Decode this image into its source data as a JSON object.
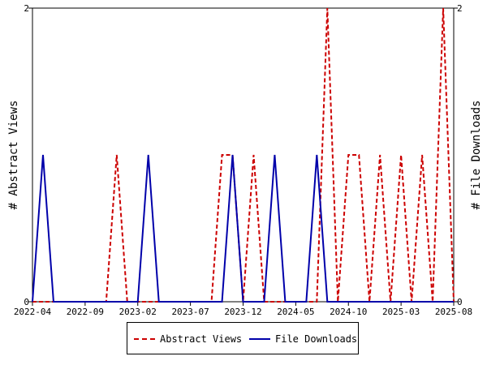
{
  "chart_data": {
    "type": "line",
    "xlabel": "",
    "ylabel_left": "# Abstract Views",
    "ylabel_right": "# File Downloads",
    "x": [
      "2022-04",
      "2022-05",
      "2022-06",
      "2022-07",
      "2022-08",
      "2022-09",
      "2022-10",
      "2022-11",
      "2022-12",
      "2023-01",
      "2023-02",
      "2023-03",
      "2023-04",
      "2023-05",
      "2023-06",
      "2023-07",
      "2023-08",
      "2023-09",
      "2023-10",
      "2023-11",
      "2023-12",
      "2024-01",
      "2024-02",
      "2024-03",
      "2024-04",
      "2024-05",
      "2024-06",
      "2024-07",
      "2024-08",
      "2024-09",
      "2024-10",
      "2024-11",
      "2024-12",
      "2025-01",
      "2025-02",
      "2025-03",
      "2025-04",
      "2025-05",
      "2025-06",
      "2025-07",
      "2025-08"
    ],
    "x_tick_labels": [
      "2022-04",
      "2022-09",
      "2023-02",
      "2023-07",
      "2023-12",
      "2024-05",
      "2024-10",
      "2025-03",
      "2025-08"
    ],
    "x_tick_every": 5,
    "ylim_left": [
      0,
      2
    ],
    "ylim_right": [
      0,
      2
    ],
    "y_tick_labels_left": [
      "0",
      "2"
    ],
    "y_tick_labels_right": [
      "0",
      "2"
    ],
    "grid": false,
    "legend_position": "bottom",
    "series": [
      {
        "name": "Abstract Views",
        "axis": "left",
        "color": "#cc0000",
        "style": "dashed",
        "values": [
          0,
          0,
          0,
          0,
          0,
          0,
          0,
          0,
          1,
          0,
          0,
          0,
          0,
          0,
          0,
          0,
          0,
          0,
          1,
          1,
          0,
          1,
          0,
          0,
          0,
          0,
          0,
          0,
          2,
          0,
          1,
          1,
          0,
          1,
          0,
          1,
          0,
          1,
          0,
          2,
          0
        ]
      },
      {
        "name": "File Downloads",
        "axis": "right",
        "color": "#0000aa",
        "style": "solid",
        "values": [
          0,
          1,
          0,
          0,
          0,
          0,
          0,
          0,
          0,
          0,
          0,
          1,
          0,
          0,
          0,
          0,
          0,
          0,
          0,
          1,
          0,
          0,
          0,
          1,
          0,
          0,
          0,
          1,
          0,
          0,
          0,
          0,
          0,
          0,
          0,
          0,
          0,
          0,
          0,
          0,
          0
        ]
      }
    ]
  }
}
